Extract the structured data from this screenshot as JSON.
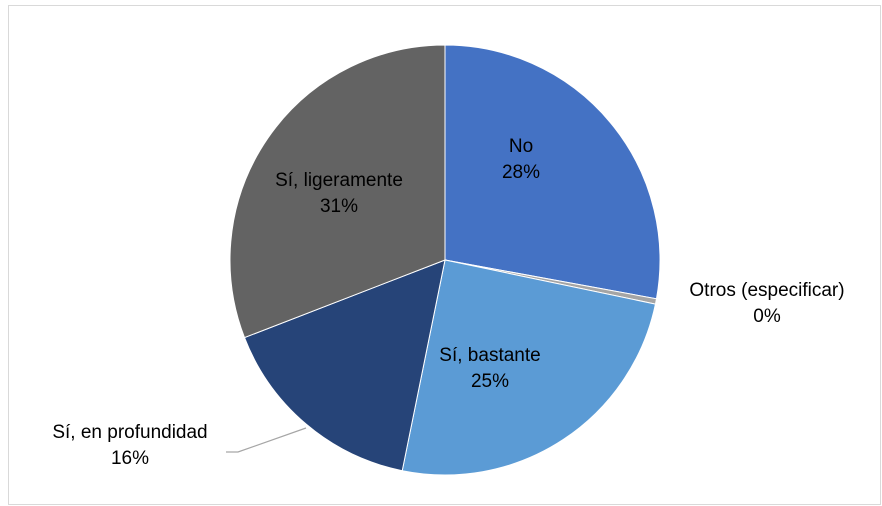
{
  "chart_data": {
    "type": "pie",
    "categories": [
      "No",
      "Otros (especificar)",
      "Sí, bastante",
      "Sí, en profundidad",
      "Sí, ligeramente"
    ],
    "values": [
      28,
      0.4,
      25,
      16,
      31
    ],
    "value_labels": [
      "28%",
      "0%",
      "25%",
      "16%",
      "31%"
    ],
    "colors": [
      "#4472c4",
      "#a5a5a5",
      "#5b9bd5",
      "#264478",
      "#636363"
    ]
  }
}
